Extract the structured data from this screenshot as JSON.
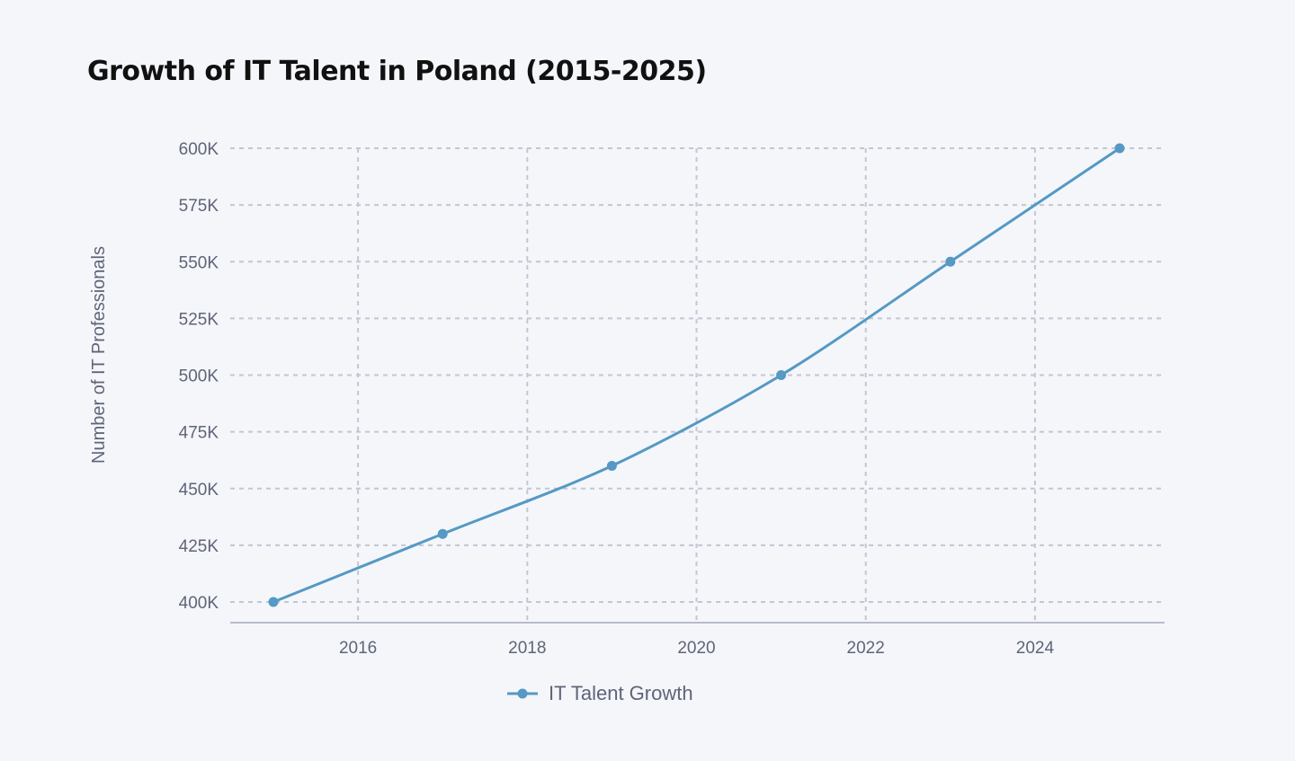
{
  "chart_data": {
    "type": "line",
    "title": "Growth of IT Talent in Poland (2015-2025)",
    "xlabel": "",
    "ylabel": "Number of IT Professionals",
    "x": [
      2015,
      2017,
      2019,
      2021,
      2023,
      2025
    ],
    "series": [
      {
        "name": "IT Talent Growth",
        "values": [
          400000,
          430000,
          460000,
          500000,
          550000,
          600000
        ],
        "color": "#5599c4"
      }
    ],
    "xlim": [
      2014.5,
      2025.5
    ],
    "ylim": [
      391000,
      600000
    ],
    "x_ticks": [
      2016,
      2018,
      2020,
      2022,
      2024
    ],
    "y_ticks": [
      400000,
      425000,
      450000,
      475000,
      500000,
      525000,
      550000,
      575000,
      600000
    ],
    "y_tick_labels": [
      "400K",
      "425K",
      "450K",
      "475K",
      "500K",
      "525K",
      "550K",
      "575K",
      "600K"
    ],
    "grid": true,
    "legend_position": "bottom",
    "smooth": true
  }
}
